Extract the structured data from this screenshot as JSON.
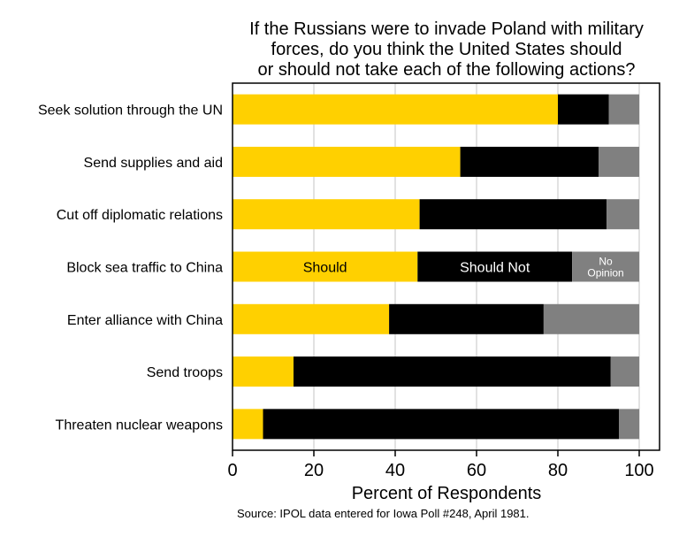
{
  "chart_data": {
    "type": "bar",
    "orientation": "horizontal",
    "stacked": true,
    "title_lines": [
      "If the Russians were to invade Poland with military",
      "forces, do you think the United States should",
      "or should not take each of the following actions?"
    ],
    "xlabel": "Percent of Respondents",
    "xlim": [
      0,
      105
    ],
    "xticks": [
      0,
      20,
      40,
      60,
      80,
      100
    ],
    "grid": "vertical",
    "categories": [
      "Seek solution through the UN",
      "Send supplies and aid",
      "Cut off diplomatic relations",
      "Block sea traffic to China",
      "Enter alliance with China",
      "Send troops",
      "Threaten nuclear weapons"
    ],
    "series": [
      {
        "name": "Should",
        "color": "#FFD000",
        "values": [
          80,
          56,
          46,
          45.5,
          38.5,
          15,
          7.5
        ]
      },
      {
        "name": "Should Not",
        "color": "#000000",
        "values": [
          12.5,
          34,
          46,
          38,
          38,
          78,
          87.5
        ]
      },
      {
        "name": "No Opinion",
        "color": "#808080",
        "values": [
          7.5,
          10,
          8,
          16.5,
          23.5,
          7,
          5
        ]
      }
    ],
    "inline_labels": {
      "row": "Block sea traffic to China",
      "should": "Should",
      "should_not": "Should Not",
      "no_opinion_line1": "No",
      "no_opinion_line2": "Opinion"
    },
    "source": "Source: IPOL data entered for Iowa Poll #248, April 1981."
  }
}
